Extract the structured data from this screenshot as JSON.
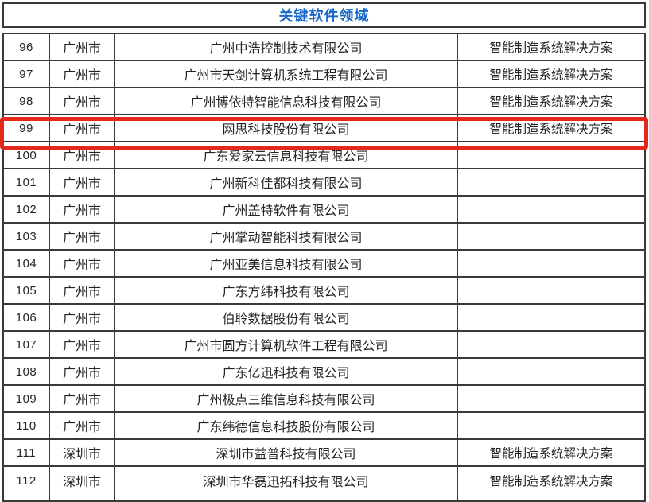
{
  "table": {
    "title": "关键软件领域",
    "rows": [
      {
        "no": "96",
        "city": "广州市",
        "company": "广州中浩控制技术有限公司",
        "solution": "智能制造系统解决方案",
        "highlighted": false
      },
      {
        "no": "97",
        "city": "广州市",
        "company": "广州市天剑计算机系统工程有限公司",
        "solution": "智能制造系统解决方案",
        "highlighted": false
      },
      {
        "no": "98",
        "city": "广州市",
        "company": "广州博依特智能信息科技有限公司",
        "solution": "智能制造系统解决方案",
        "highlighted": false
      },
      {
        "no": "99",
        "city": "广州市",
        "company": "网思科技股份有限公司",
        "solution": "智能制造系统解决方案",
        "highlighted": true
      },
      {
        "no": "100",
        "city": "广州市",
        "company": "广东爱家云信息科技有限公司",
        "solution": "",
        "highlighted": false
      },
      {
        "no": "101",
        "city": "广州市",
        "company": "广州新科佳都科技有限公司",
        "solution": "",
        "highlighted": false
      },
      {
        "no": "102",
        "city": "广州市",
        "company": "广州盖特软件有限公司",
        "solution": "",
        "highlighted": false
      },
      {
        "no": "103",
        "city": "广州市",
        "company": "广州掌动智能科技有限公司",
        "solution": "",
        "highlighted": false
      },
      {
        "no": "104",
        "city": "广州市",
        "company": "广州亚美信息科技有限公司",
        "solution": "",
        "highlighted": false
      },
      {
        "no": "105",
        "city": "广州市",
        "company": "广东方纬科技有限公司",
        "solution": "",
        "highlighted": false
      },
      {
        "no": "106",
        "city": "广州市",
        "company": "伯聆数据股份有限公司",
        "solution": "",
        "highlighted": false
      },
      {
        "no": "107",
        "city": "广州市",
        "company": "广州市圆方计算机软件工程有限公司",
        "solution": "",
        "highlighted": false
      },
      {
        "no": "108",
        "city": "广州市",
        "company": "广东亿迅科技有限公司",
        "solution": "",
        "highlighted": false
      },
      {
        "no": "109",
        "city": "广州市",
        "company": "广州极点三维信息科技有限公司",
        "solution": "",
        "highlighted": false
      },
      {
        "no": "110",
        "city": "广州市",
        "company": "广东纬德信息科技股份有限公司",
        "solution": "",
        "highlighted": false
      },
      {
        "no": "111",
        "city": "深圳市",
        "company": "深圳市益普科技有限公司",
        "solution": "智能制造系统解决方案",
        "highlighted": false
      },
      {
        "no": "112",
        "city": "深圳市",
        "company": "深圳市华磊迅拓科技有限公司",
        "solution": "智能制造系统解决方案",
        "highlighted": false
      }
    ]
  },
  "colors": {
    "title_blue": "#1a68c8",
    "highlight_red": "#e2291c",
    "border_dark": "#3a3a3a",
    "text": "#242424"
  }
}
